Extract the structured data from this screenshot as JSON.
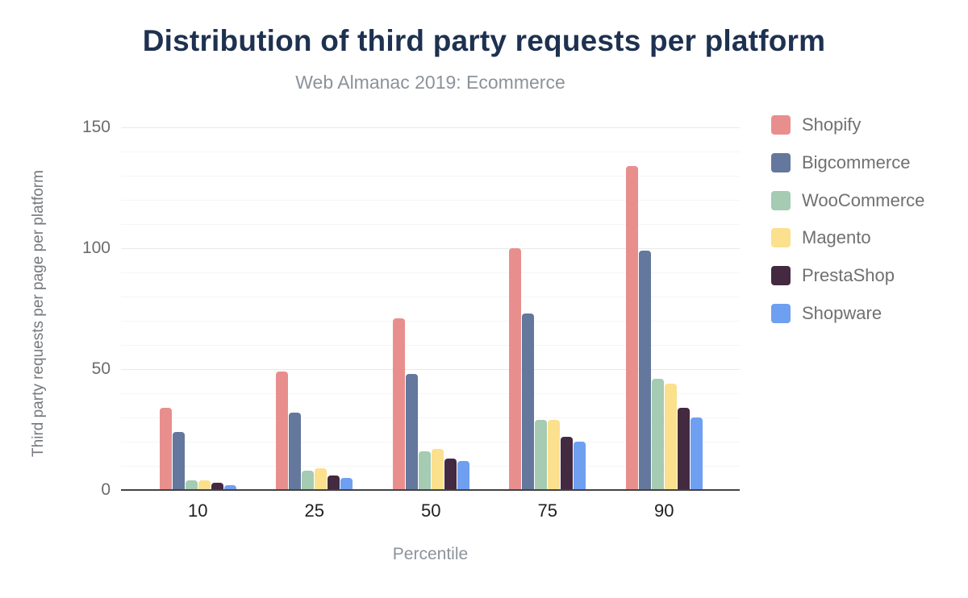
{
  "chart_data": {
    "type": "bar",
    "title": "Distribution of third party requests per platform",
    "subtitle": "Web Almanac 2019: Ecommerce",
    "xlabel": "Percentile",
    "ylabel": "Third party requests per page per platform",
    "categories": [
      "10",
      "25",
      "50",
      "75",
      "90"
    ],
    "series": [
      {
        "name": "Shopify",
        "color": "#e88f8e",
        "values": [
          34,
          49,
          71,
          100,
          134
        ]
      },
      {
        "name": "Bigcommerce",
        "color": "#64779d",
        "values": [
          24,
          32,
          48,
          73,
          99
        ]
      },
      {
        "name": "WooCommerce",
        "color": "#a5cbb2",
        "values": [
          4,
          8,
          16,
          29,
          46
        ]
      },
      {
        "name": "Magento",
        "color": "#fbe08e",
        "values": [
          4,
          9,
          17,
          29,
          44
        ]
      },
      {
        "name": "PrestaShop",
        "color": "#432a40",
        "values": [
          3,
          6,
          13,
          22,
          34
        ]
      },
      {
        "name": "Shopware",
        "color": "#6f9ff0",
        "values": [
          2,
          5,
          12,
          20,
          30
        ]
      }
    ],
    "y_ticks": [
      0,
      50,
      100,
      150
    ],
    "ylim": [
      0,
      150
    ],
    "minor_grid_step": 10,
    "grid": true,
    "legend_position": "right",
    "colors": {
      "title": "#1e3150",
      "subtitle": "#8c929a",
      "axis_line": "#424242",
      "x_tick_text": "#1f1f1f",
      "y_tick_text": "#6b6b6b",
      "background": "#ffffff"
    }
  }
}
